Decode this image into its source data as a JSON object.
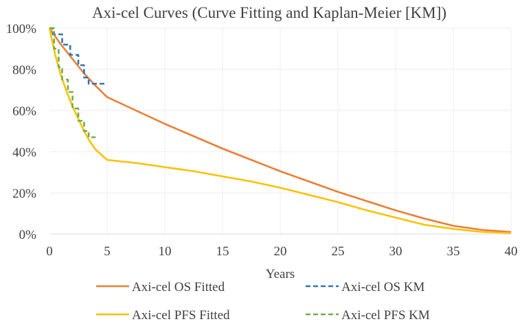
{
  "chart_data": {
    "type": "line",
    "title": "Axi-cel Curves (Curve Fitting and Kaplan-Meier [KM])",
    "xlabel": "Years",
    "ylabel": "",
    "xlim": [
      0,
      40
    ],
    "ylim": [
      0,
      100
    ],
    "x_ticks": [
      "0",
      "5",
      "10",
      "15",
      "20",
      "25",
      "30",
      "35",
      "40"
    ],
    "y_ticks": [
      "0%",
      "20%",
      "40%",
      "60%",
      "80%",
      "100%"
    ],
    "grid": true,
    "legend_position": "bottom",
    "series": [
      {
        "name": "Axi-cel OS Fitted",
        "color": "#ED7D31",
        "style": "solid",
        "x": [
          0,
          1,
          2,
          3,
          4,
          5,
          7.5,
          10,
          12.5,
          15,
          17.5,
          20,
          22.5,
          25,
          27.5,
          30,
          32.5,
          35,
          37.5,
          40
        ],
        "y": [
          100,
          92,
          85,
          78,
          72,
          66.5,
          60,
          53.5,
          47.5,
          41.5,
          36,
          30.5,
          25.5,
          20.5,
          16,
          11.5,
          7.5,
          4,
          2,
          1
        ]
      },
      {
        "name": "Axi-cel OS KM",
        "color": "#2E75B6",
        "style": "dashed",
        "x": [
          0,
          0.3,
          0.3,
          1.1,
          1.1,
          1.8,
          1.8,
          2.5,
          2.5,
          3.0,
          3.0,
          3.4,
          3.4,
          4.8
        ],
        "y": [
          100,
          100,
          97,
          97,
          92,
          92,
          87,
          87,
          82,
          82,
          76,
          76,
          73,
          73
        ]
      },
      {
        "name": "Axi-cel PFS Fitted",
        "color": "#FFC000",
        "style": "solid",
        "x": [
          0,
          0.5,
          1,
          1.5,
          2,
          2.5,
          3,
          3.5,
          4,
          5,
          7.5,
          10,
          12.5,
          15,
          17.5,
          20,
          22.5,
          25,
          27.5,
          30,
          32.5,
          35,
          37.5,
          40
        ],
        "y": [
          100,
          87,
          77,
          69,
          62,
          56,
          50,
          45,
          41,
          36,
          34.5,
          32.5,
          30.5,
          28,
          25.5,
          22.5,
          19,
          15.5,
          11.5,
          8,
          4.5,
          2.5,
          1,
          0.5
        ]
      },
      {
        "name": "Axi-cel PFS KM",
        "color": "#70AD47",
        "style": "dashed",
        "x": [
          0,
          0.4,
          0.4,
          0.8,
          0.8,
          1.1,
          1.1,
          1.6,
          1.6,
          2.0,
          2.0,
          2.5,
          2.5,
          3.0,
          3.0,
          3.4,
          3.4,
          4.0
        ],
        "y": [
          100,
          100,
          90,
          90,
          81,
          81,
          75,
          75,
          69,
          69,
          61,
          61,
          55,
          55,
          50,
          50,
          47,
          47
        ]
      }
    ]
  }
}
